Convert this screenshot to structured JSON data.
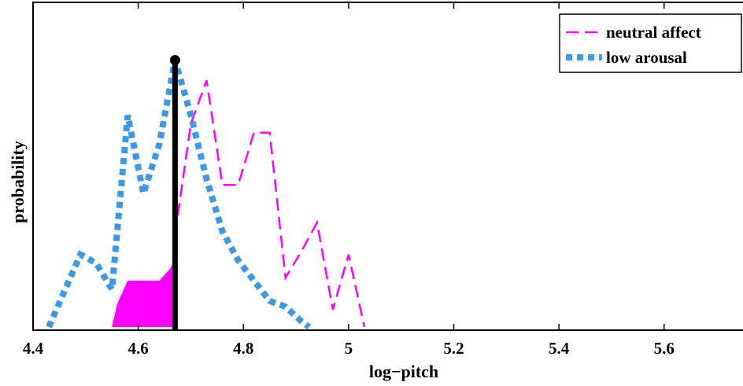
{
  "chart_data": {
    "type": "line",
    "title": "",
    "xlabel": "log−pitch",
    "ylabel": "probability",
    "xlim": [
      4.4,
      5.75
    ],
    "ylim": [
      0,
      1
    ],
    "xticks": [
      4.4,
      4.6,
      4.8,
      5,
      5.2,
      5.4,
      5.6
    ],
    "xtick_labels": [
      "4.4",
      "4.6",
      "4.8",
      "5",
      "5.2",
      "5.4",
      "5.6"
    ],
    "ytick_labels": [],
    "grid": false,
    "legend_position": "top-right",
    "series": [
      {
        "name": "neutral affect",
        "style": "dashed",
        "color": "#ff00ff",
        "x": [
          4.67,
          4.7,
          4.73,
          4.76,
          4.79,
          4.82,
          4.85,
          4.88,
          4.91,
          4.94,
          4.97,
          5.0,
          5.03
        ],
        "y": [
          0.32,
          0.7,
          0.85,
          0.49,
          0.49,
          0.67,
          0.67,
          0.17,
          0.26,
          0.36,
          0.06,
          0.25,
          0.0
        ]
      },
      {
        "name": "low arousal",
        "style": "dotted",
        "color": "#3a9ae8",
        "x": [
          4.43,
          4.49,
          4.52,
          4.55,
          4.58,
          4.61,
          4.64,
          4.67,
          4.7,
          4.73,
          4.76,
          4.79,
          4.82,
          4.85,
          4.88,
          4.91,
          4.925
        ],
        "y": [
          0.0,
          0.25,
          0.22,
          0.13,
          0.73,
          0.46,
          0.63,
          0.92,
          0.73,
          0.51,
          0.33,
          0.23,
          0.16,
          0.09,
          0.07,
          0.02,
          0.0
        ]
      }
    ],
    "marker": {
      "x": 4.67,
      "y": 0.92,
      "color": "#000000"
    },
    "shaded_region": {
      "color": "#ff00ff",
      "x": [
        4.55,
        4.56,
        4.58,
        4.61,
        4.64,
        4.66,
        4.675,
        4.675,
        4.55
      ],
      "y": [
        0.0,
        0.08,
        0.16,
        0.16,
        0.16,
        0.2,
        0.25,
        0.0,
        0.0
      ]
    }
  }
}
